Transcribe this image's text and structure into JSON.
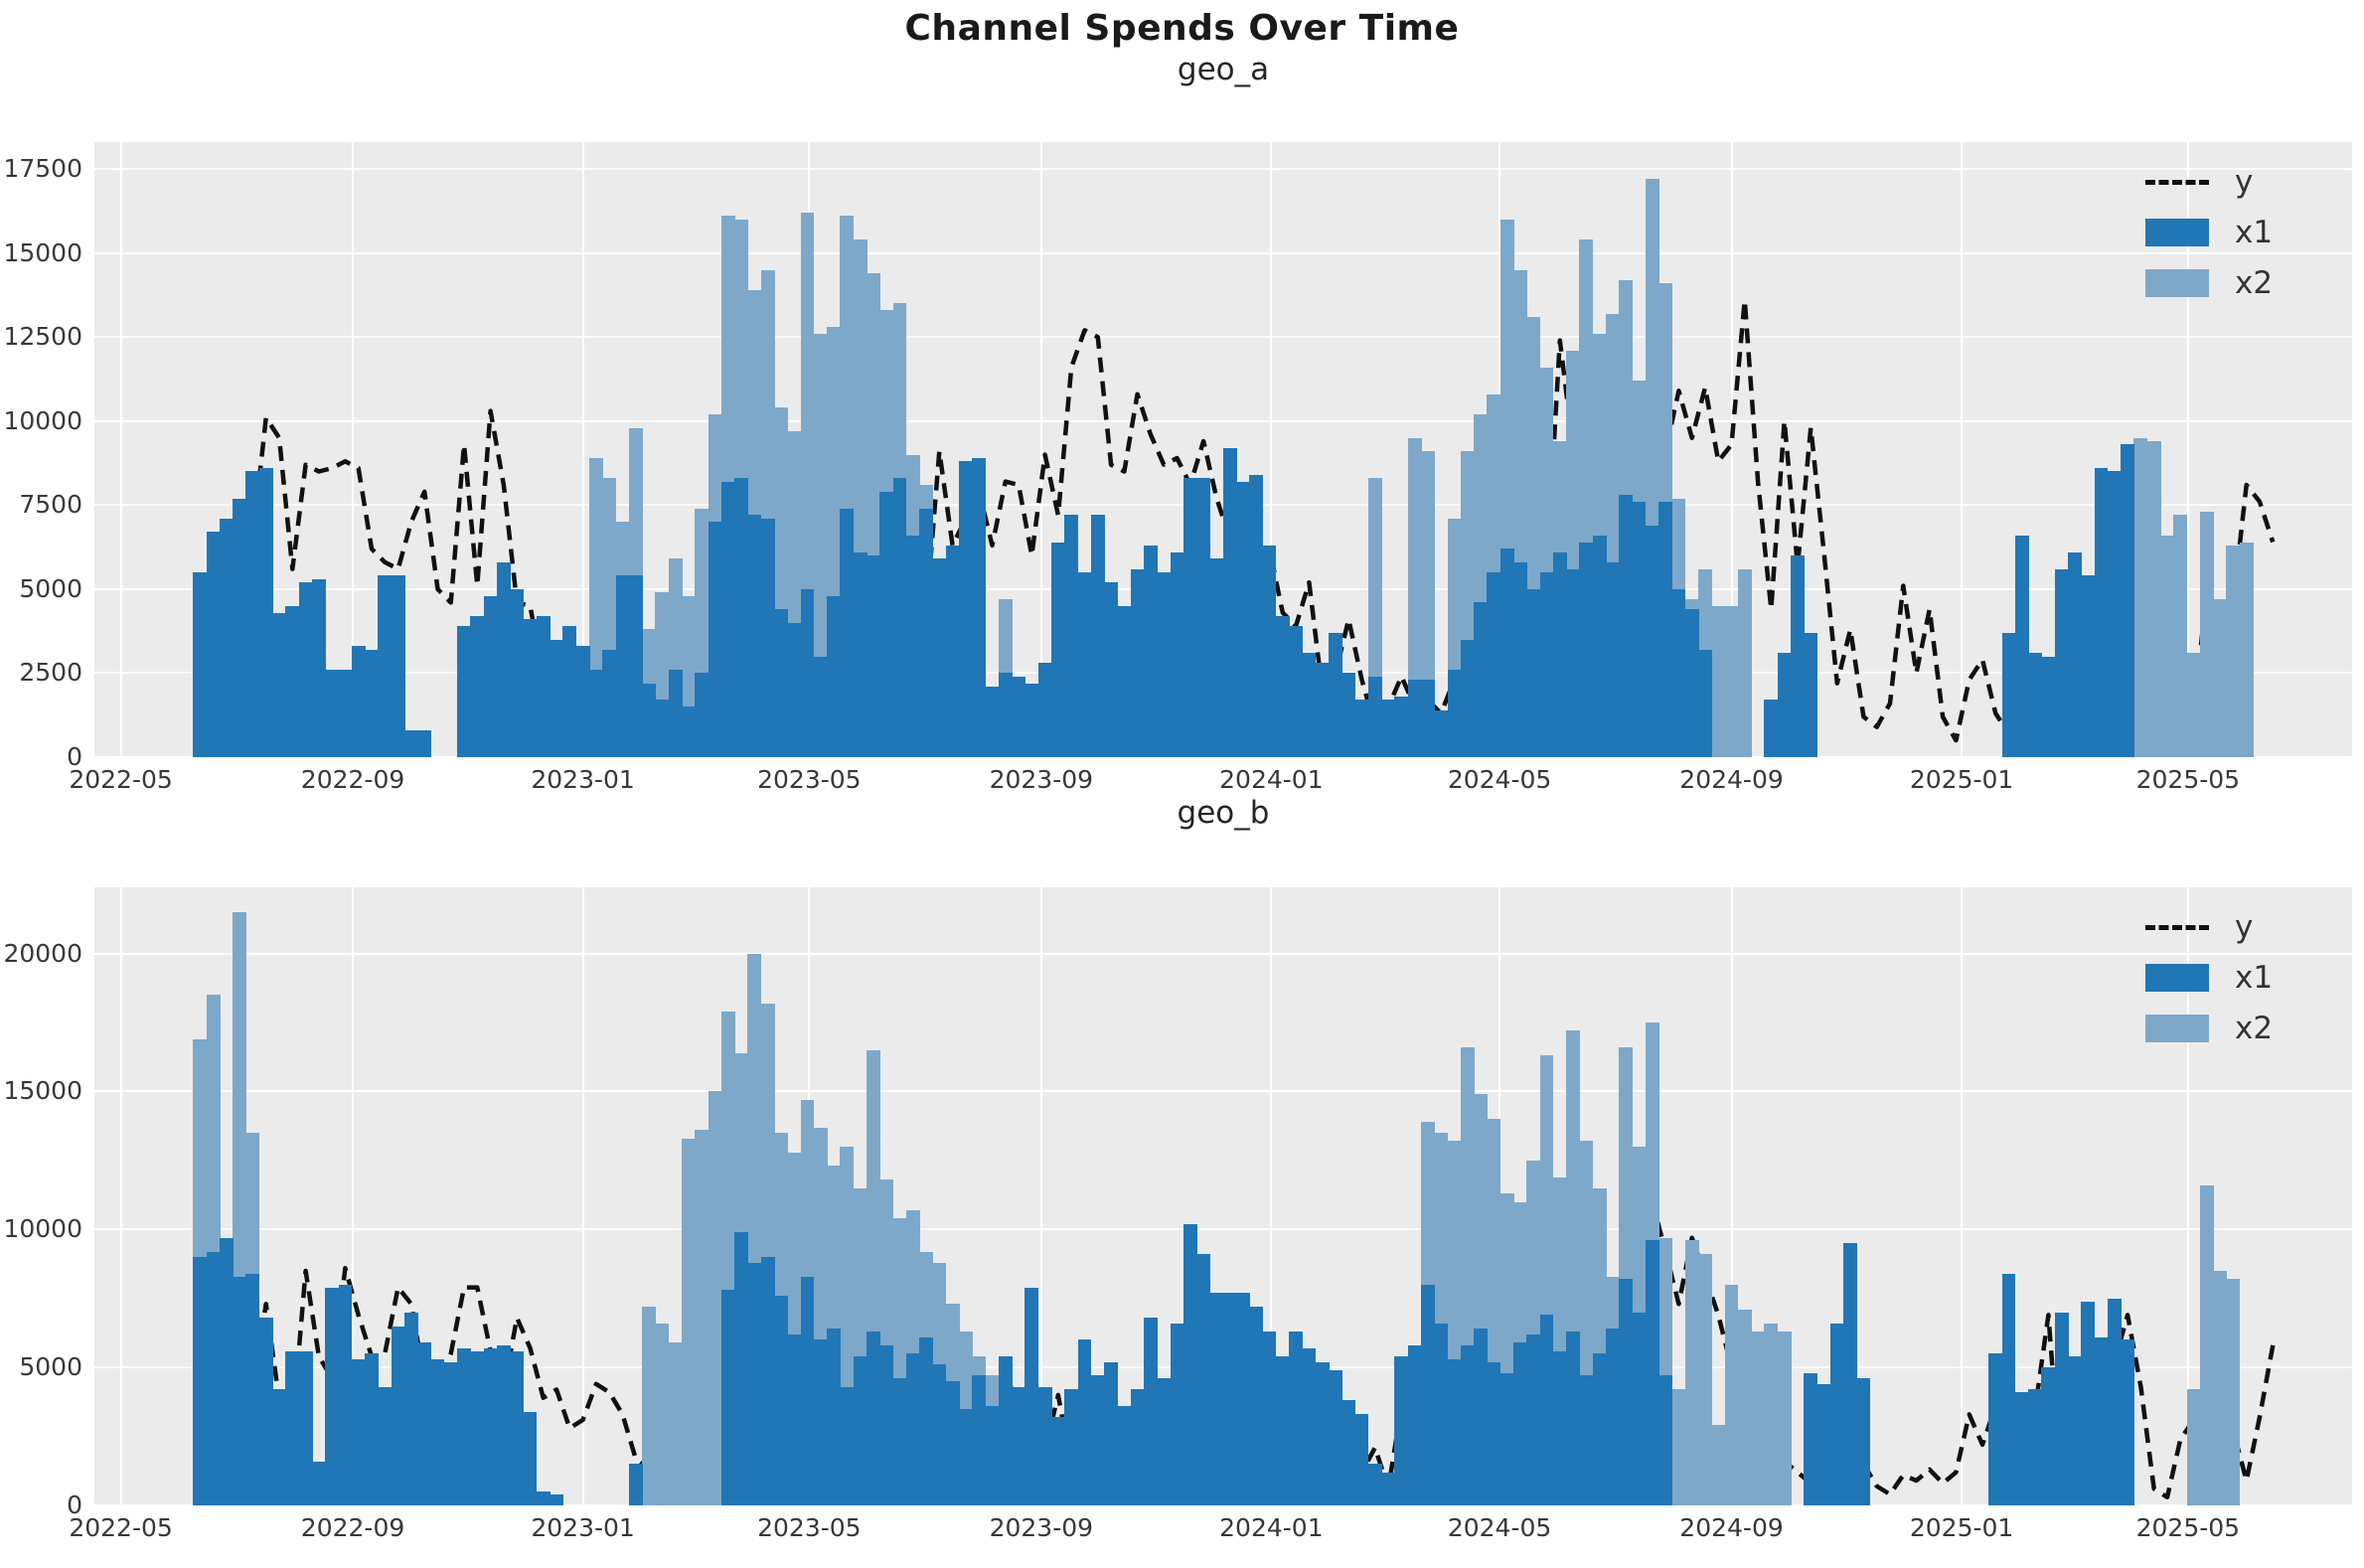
{
  "title": "Channel Spends Over Time",
  "colors": {
    "x1": "#2176b5",
    "x2": "#7ea8c9",
    "line": "#111111",
    "plot_bg": "#ebebeb",
    "grid": "#ffffff",
    "text": "#262626"
  },
  "legend": {
    "y": "y",
    "x1": "x1",
    "x2": "x2"
  },
  "axis": {
    "x_min": "2022-04-17",
    "x_max": "2025-07-27",
    "xtick_labels": [
      "2022-05",
      "2022-09",
      "2023-01",
      "2023-05",
      "2023-09",
      "2024-01",
      "2024-05",
      "2024-09",
      "2025-01",
      "2025-05"
    ]
  },
  "chart_data": [
    {
      "type": "bar+line",
      "title": "geo_a",
      "xlabel": "",
      "ylabel": "",
      "ylim": [
        0,
        18300
      ],
      "yticks": [
        0,
        2500,
        5000,
        7500,
        10000,
        12500,
        15000,
        17500
      ],
      "grid": true,
      "legend_position": "upper right",
      "x_start": "2022-06-12",
      "x_step_days": 7,
      "n_points": 158,
      "series": {
        "y": [
          2700,
          4600,
          6000,
          5800,
          6500,
          10100,
          9500,
          5600,
          8700,
          8500,
          8600,
          8800,
          8600,
          6200,
          5800,
          5600,
          7000,
          7900,
          5000,
          4600,
          9300,
          5100,
          10300,
          8100,
          4600,
          4500,
          2400,
          2000,
          2300,
          2000,
          2300,
          5200,
          2100,
          1300,
          800,
          500,
          800,
          900,
          700,
          600,
          900,
          3500,
          2400,
          1200,
          2700,
          3000,
          1500,
          2200,
          7000,
          5000,
          2800,
          5200,
          3000,
          5700,
          2900,
          4300,
          9100,
          6300,
          7100,
          7900,
          6300,
          8200,
          8100,
          6000,
          9000,
          7200,
          11600,
          12700,
          12500,
          8700,
          8500,
          10800,
          9600,
          8700,
          8900,
          8100,
          9400,
          7700,
          6500,
          7300,
          5500,
          6200,
          4300,
          3900,
          5200,
          2000,
          2500,
          4100,
          2300,
          900,
          1500,
          2400,
          1500,
          1700,
          1300,
          2300,
          2400,
          1400,
          1200,
          2700,
          1600,
          2100,
          5600,
          12400,
          9200,
          5600,
          11100,
          9000,
          8500,
          9800,
          8300,
          9100,
          10900,
          9500,
          11000,
          8800,
          9300,
          13600,
          8200,
          4400,
          10000,
          5700,
          9800,
          6100,
          2200,
          3800,
          1200,
          900,
          1600,
          5100,
          2500,
          4400,
          1200,
          500,
          2300,
          2900,
          1300,
          700,
          700,
          900,
          800,
          1000,
          1500,
          1200,
          2200,
          2000,
          6700,
          4400,
          2000,
          5900,
          2500,
          1200,
          5000,
          3000,
          4600,
          8100,
          7600,
          6400
        ],
        "x1": [
          5500,
          6700,
          7100,
          7700,
          8500,
          8600,
          4300,
          4500,
          5200,
          5300,
          2600,
          2600,
          3300,
          3200,
          5400,
          5400,
          800,
          800,
          0,
          0,
          3900,
          4200,
          4800,
          5800,
          5000,
          4100,
          4200,
          3500,
          3900,
          3300,
          2600,
          3200,
          5400,
          5400,
          2200,
          1700,
          2600,
          1500,
          2500,
          7000,
          8200,
          8300,
          7200,
          7100,
          4400,
          4000,
          5000,
          3000,
          4800,
          7400,
          6100,
          6000,
          7900,
          8300,
          6600,
          7400,
          5900,
          6300,
          8800,
          8900,
          2100,
          2500,
          2400,
          2200,
          2800,
          6400,
          7200,
          5500,
          7200,
          5200,
          4500,
          5600,
          6300,
          5500,
          6100,
          8300,
          8300,
          5900,
          9200,
          8200,
          8400,
          6300,
          4200,
          3900,
          3100,
          2800,
          3700,
          2500,
          1700,
          2400,
          1700,
          1800,
          2300,
          2300,
          1400,
          2600,
          3500,
          4600,
          5500,
          6200,
          5800,
          5000,
          5500,
          6100,
          5600,
          6400,
          6600,
          5800,
          7800,
          7600,
          6900,
          7600,
          5000,
          4400,
          3200,
          0,
          0,
          0,
          0,
          1700,
          3100,
          6000,
          3700,
          0,
          0,
          0,
          0,
          0,
          0,
          0,
          0,
          0,
          0,
          0,
          0,
          0,
          0,
          3700,
          6600,
          3100,
          3000,
          5600,
          6100,
          5400,
          8600,
          8500,
          9300,
          0,
          0,
          0,
          0,
          0,
          0,
          0,
          0,
          0,
          0,
          0
        ],
        "x2": [
          0,
          0,
          0,
          0,
          0,
          0,
          0,
          0,
          0,
          0,
          0,
          0,
          0,
          0,
          0,
          0,
          0,
          0,
          0,
          0,
          0,
          0,
          0,
          0,
          0,
          0,
          0,
          0,
          0,
          0,
          8900,
          8300,
          7000,
          9800,
          3800,
          4900,
          5900,
          4800,
          7400,
          10200,
          16100,
          16000,
          13900,
          14500,
          10400,
          9700,
          16200,
          12600,
          12800,
          16100,
          15400,
          14400,
          13300,
          13500,
          9000,
          8100,
          3900,
          3600,
          0,
          0,
          0,
          4700,
          0,
          0,
          0,
          0,
          0,
          0,
          0,
          0,
          0,
          0,
          0,
          0,
          0,
          0,
          0,
          0,
          0,
          0,
          0,
          0,
          0,
          0,
          0,
          0,
          0,
          0,
          0,
          8300,
          0,
          0,
          9500,
          9100,
          0,
          7100,
          9100,
          10200,
          10800,
          16000,
          14500,
          13100,
          11600,
          9400,
          12100,
          15400,
          12600,
          13200,
          14200,
          11200,
          17200,
          14100,
          7700,
          4700,
          5600,
          4500,
          4500,
          5600,
          0,
          0,
          0,
          0,
          0,
          0,
          0,
          0,
          0,
          0,
          0,
          0,
          0,
          0,
          0,
          0,
          0,
          0,
          0,
          0,
          0,
          0,
          0,
          0,
          0,
          0,
          0,
          0,
          0,
          9500,
          9400,
          6600,
          7200,
          3100,
          7300,
          4700,
          6300,
          6400,
          0,
          0
        ]
      }
    },
    {
      "type": "bar+line",
      "title": "geo_b",
      "xlabel": "",
      "ylabel": "",
      "ylim": [
        0,
        22400
      ],
      "yticks": [
        0,
        5000,
        10000,
        15000,
        20000
      ],
      "grid": true,
      "legend_position": "upper right",
      "x_start": "2022-06-12",
      "x_step_days": 7,
      "n_points": 158,
      "series": {
        "y": [
          500,
          3600,
          4100,
          2800,
          4300,
          7300,
          3800,
          2900,
          8500,
          5400,
          4600,
          8600,
          6900,
          5400,
          5500,
          7900,
          7300,
          4500,
          4300,
          5500,
          7900,
          7900,
          5600,
          4200,
          6800,
          5700,
          3900,
          4200,
          2800,
          3100,
          4400,
          4100,
          3300,
          1700,
          1300,
          400,
          1800,
          3600,
          1200,
          2800,
          6300,
          1100,
          5400,
          2600,
          4400,
          4100,
          1200,
          5900,
          2800,
          4500,
          2100,
          6900,
          3300,
          5600,
          4100,
          2400,
          6200,
          4800,
          2400,
          3800,
          2300,
          4900,
          3400,
          5300,
          2000,
          4000,
          1300,
          2400,
          2200,
          2100,
          3500,
          1600,
          2300,
          4200,
          2100,
          5800,
          3200,
          2500,
          2000,
          3600,
          2600,
          1800,
          3200,
          2200,
          3100,
          1600,
          4500,
          2400,
          1200,
          2100,
          600,
          3600,
          2400,
          4600,
          3100,
          4600,
          2100,
          1200,
          3500,
          4900,
          1500,
          2600,
          4400,
          1300,
          4300,
          2600,
          4000,
          5200,
          6900,
          8300,
          11000,
          9200,
          7300,
          9700,
          8300,
          6900,
          5000,
          3500,
          2200,
          1400,
          1600,
          1200,
          800,
          1800,
          1500,
          1900,
          1500,
          700,
          400,
          1100,
          900,
          1300,
          800,
          1200,
          3300,
          2200,
          3600,
          1700,
          900,
          3500,
          6900,
          600,
          5300,
          4900,
          2000,
          5200,
          6900,
          4300,
          600,
          300,
          2400,
          3100,
          1500,
          900,
          2700,
          900,
          3200,
          5800
        ],
        "x1": [
          9000,
          9200,
          9700,
          8300,
          8400,
          6800,
          4200,
          5600,
          5600,
          1600,
          7900,
          8000,
          5300,
          5500,
          4300,
          6500,
          7000,
          5900,
          5300,
          5200,
          5700,
          5600,
          5700,
          5800,
          5600,
          3400,
          500,
          400,
          0,
          0,
          0,
          0,
          0,
          1500,
          0,
          0,
          0,
          0,
          0,
          0,
          7800,
          9900,
          8800,
          9000,
          7600,
          6200,
          8300,
          6000,
          6400,
          4300,
          5400,
          6300,
          5800,
          4600,
          5500,
          6100,
          5100,
          4500,
          3500,
          4700,
          3600,
          5400,
          4300,
          7900,
          4300,
          3200,
          4200,
          6000,
          4700,
          5200,
          3600,
          4200,
          6800,
          4600,
          6600,
          10200,
          9100,
          7700,
          7700,
          7700,
          7200,
          6300,
          5400,
          6300,
          5700,
          5200,
          4900,
          3800,
          3300,
          1500,
          1200,
          5400,
          5800,
          8000,
          6600,
          5300,
          5800,
          6400,
          5200,
          4800,
          5900,
          6200,
          6900,
          5600,
          6300,
          4700,
          5500,
          6400,
          8200,
          7000,
          9600,
          4700,
          0,
          0,
          0,
          0,
          0,
          0,
          0,
          0,
          0,
          0,
          4800,
          4400,
          6600,
          9500,
          4600,
          0,
          0,
          0,
          0,
          0,
          0,
          0,
          0,
          0,
          5500,
          8400,
          4100,
          4200,
          5000,
          7000,
          5400,
          7400,
          6100,
          7500,
          6000,
          0,
          0,
          0,
          0,
          0,
          0,
          0,
          0,
          0,
          0,
          0
        ],
        "x2": [
          16900,
          18500,
          0,
          21500,
          13500,
          0,
          0,
          0,
          0,
          0,
          0,
          0,
          0,
          0,
          0,
          0,
          0,
          0,
          0,
          0,
          0,
          0,
          0,
          0,
          0,
          0,
          0,
          0,
          0,
          0,
          0,
          0,
          0,
          0,
          7200,
          6600,
          5900,
          13300,
          13600,
          15000,
          17900,
          16400,
          20000,
          18200,
          13500,
          12800,
          14700,
          13700,
          12300,
          13000,
          11500,
          16500,
          11800,
          10400,
          10700,
          9200,
          8800,
          7300,
          6300,
          5400,
          4700,
          0,
          0,
          0,
          0,
          0,
          0,
          0,
          0,
          0,
          0,
          0,
          0,
          0,
          0,
          0,
          0,
          0,
          0,
          0,
          0,
          0,
          0,
          0,
          0,
          0,
          0,
          0,
          0,
          0,
          0,
          0,
          0,
          13900,
          13500,
          13200,
          16600,
          14900,
          14000,
          11300,
          11000,
          12500,
          16300,
          11900,
          17200,
          13200,
          11500,
          8300,
          16600,
          13000,
          17500,
          9700,
          4200,
          9600,
          9100,
          2900,
          8000,
          7100,
          6300,
          6600,
          6300,
          0,
          0,
          0,
          0,
          0,
          0,
          0,
          0,
          0,
          0,
          0,
          0,
          0,
          0,
          0,
          0,
          0,
          0,
          0,
          0,
          0,
          0,
          0,
          0,
          0,
          0,
          0,
          0,
          0,
          0,
          4200,
          11600,
          8500,
          8200,
          0,
          0,
          0
        ]
      }
    }
  ]
}
